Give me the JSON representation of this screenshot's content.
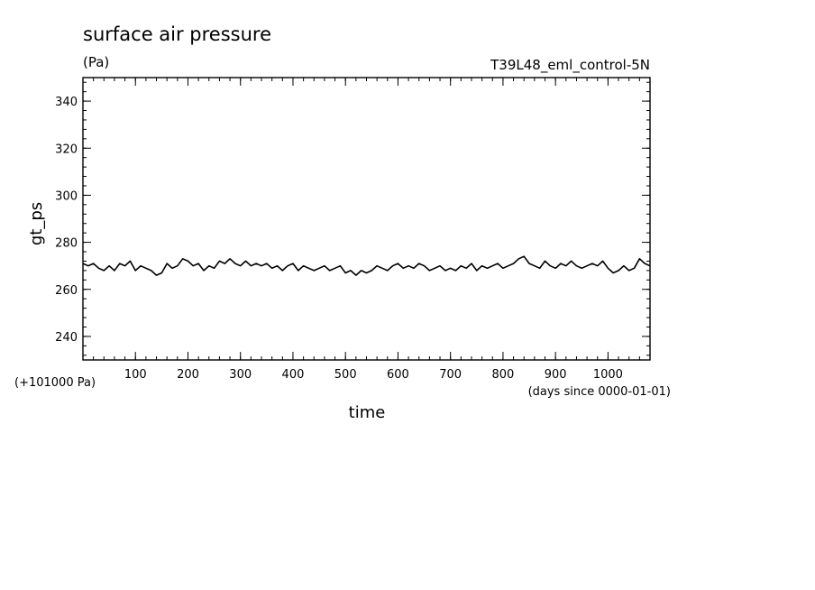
{
  "chart_data": {
    "type": "line",
    "title": "surface air pressure",
    "units": "(Pa)",
    "run_label": "T39L48_eml_control-5N",
    "xlabel": "time",
    "x_units": "(days since 0000-01-01)",
    "ylabel": "gt_ps",
    "y_offset_label": "(+101000 Pa)",
    "xlim": [
      0,
      1080
    ],
    "ylim": [
      230,
      350
    ],
    "x_ticks": [
      100,
      200,
      300,
      400,
      500,
      600,
      700,
      800,
      900,
      1000
    ],
    "y_ticks": [
      240,
      260,
      280,
      300,
      320,
      340
    ],
    "grid": false,
    "series": [
      {
        "x": [
          0,
          10,
          20,
          30,
          40,
          50,
          60,
          70,
          80,
          90,
          100,
          110,
          120,
          130,
          140,
          150,
          160,
          170,
          180,
          190,
          200,
          210,
          220,
          230,
          240,
          250,
          260,
          270,
          280,
          290,
          300,
          310,
          320,
          330,
          340,
          350,
          360,
          370,
          380,
          390,
          400,
          410,
          420,
          430,
          440,
          450,
          460,
          470,
          480,
          490,
          500,
          510,
          520,
          530,
          540,
          550,
          560,
          570,
          580,
          590,
          600,
          610,
          620,
          630,
          640,
          650,
          660,
          670,
          680,
          690,
          700,
          710,
          720,
          730,
          740,
          750,
          760,
          770,
          780,
          790,
          800,
          810,
          820,
          830,
          840,
          850,
          860,
          870,
          880,
          890,
          900,
          910,
          920,
          930,
          940,
          950,
          960,
          970,
          980,
          990,
          1000,
          1010,
          1020,
          1030,
          1040,
          1050,
          1060,
          1070,
          1080
        ],
        "y": [
          271,
          270,
          271,
          269,
          268,
          270,
          268,
          271,
          270,
          272,
          268,
          270,
          269,
          268,
          266,
          267,
          271,
          269,
          270,
          273,
          272,
          270,
          271,
          268,
          270,
          269,
          272,
          271,
          273,
          271,
          270,
          272,
          270,
          271,
          270,
          271,
          269,
          270,
          268,
          270,
          271,
          268,
          270,
          269,
          268,
          269,
          270,
          268,
          269,
          270,
          267,
          268,
          266,
          268,
          267,
          268,
          270,
          269,
          268,
          270,
          271,
          269,
          270,
          269,
          271,
          270,
          268,
          269,
          270,
          268,
          269,
          268,
          270,
          269,
          271,
          268,
          270,
          269,
          270,
          271,
          269,
          270,
          271,
          273,
          274,
          271,
          270,
          269,
          272,
          270,
          269,
          271,
          270,
          272,
          270,
          269,
          270,
          271,
          270,
          272,
          269,
          267,
          268,
          270,
          268,
          269,
          273,
          271,
          270
        ]
      }
    ]
  }
}
